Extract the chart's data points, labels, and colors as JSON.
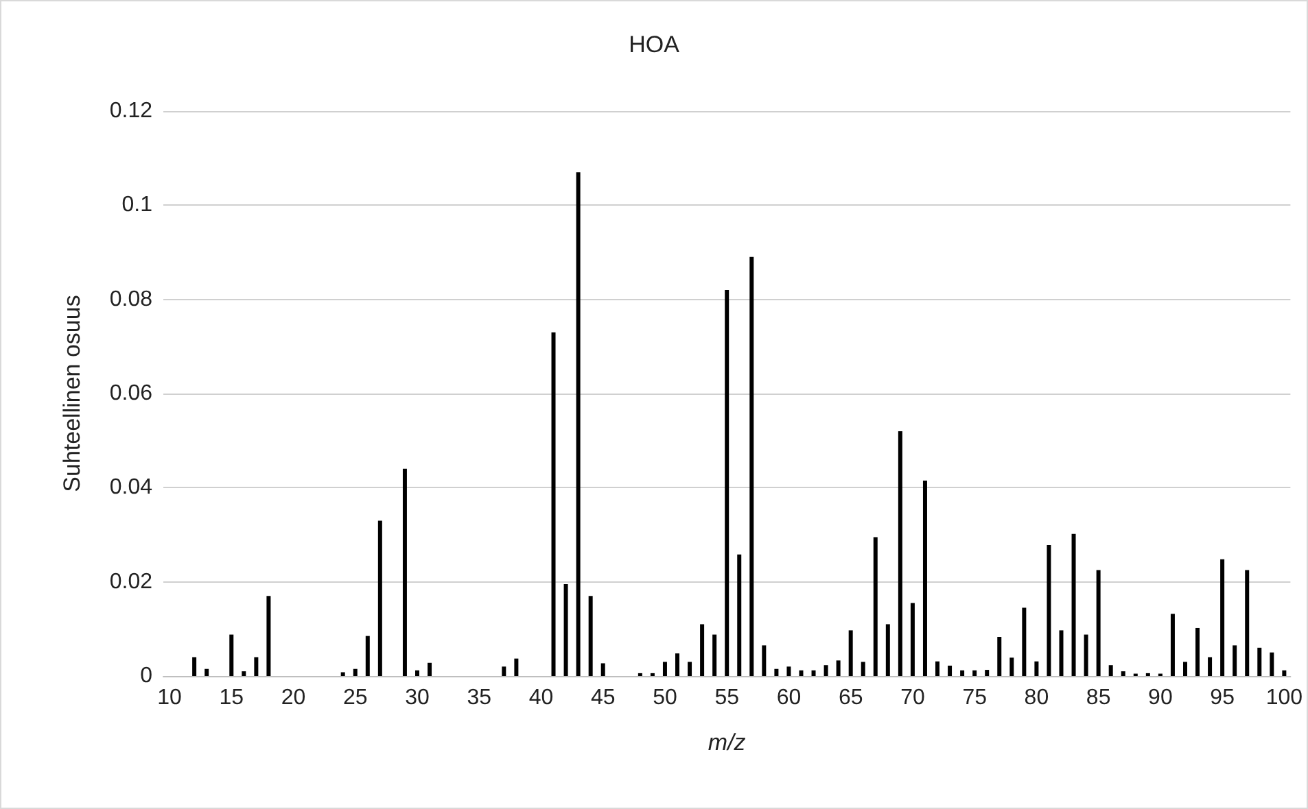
{
  "chart_data": {
    "type": "bar",
    "title": "HOA",
    "xlabel": "m/z",
    "ylabel": "Suhteellinen osuus",
    "categories": [
      "10",
      null,
      null,
      null,
      null,
      "15",
      null,
      null,
      null,
      null,
      "20",
      null,
      null,
      null,
      null,
      "25",
      null,
      null,
      null,
      null,
      "30",
      null,
      null,
      null,
      null,
      "35",
      null,
      null,
      null,
      null,
      "40",
      null,
      null,
      null,
      null,
      "45",
      null,
      null,
      null,
      null,
      "50",
      null,
      null,
      null,
      null,
      "55",
      null,
      null,
      null,
      null,
      "60",
      null,
      null,
      null,
      null,
      "65",
      null,
      null,
      null,
      null,
      "70",
      null,
      null,
      null,
      null,
      "75",
      null,
      null,
      null,
      null,
      "80",
      null,
      null,
      null,
      null,
      "85",
      null,
      null,
      null,
      null,
      "90",
      null,
      null,
      null,
      null,
      "95",
      null,
      null,
      null,
      null,
      "100"
    ],
    "values": [
      null,
      null,
      0.004,
      0.0015,
      null,
      0.0088,
      0.001,
      0.004,
      0.017,
      null,
      null,
      null,
      null,
      null,
      0.0008,
      0.0015,
      0.0085,
      0.033,
      null,
      0.044,
      0.0012,
      0.0028,
      null,
      null,
      null,
      null,
      null,
      0.002,
      0.0037,
      null,
      null,
      0.073,
      0.0195,
      0.107,
      0.017,
      0.0027,
      null,
      null,
      0.0006,
      0.0006,
      0.003,
      0.0048,
      0.003,
      0.011,
      0.0088,
      0.082,
      0.0258,
      0.089,
      0.0065,
      0.0015,
      0.002,
      0.0012,
      0.0012,
      0.0023,
      0.0033,
      0.0097,
      0.003,
      0.0295,
      0.011,
      0.052,
      0.0155,
      0.0415,
      0.0031,
      0.0022,
      0.0012,
      0.0012,
      0.0013,
      0.0083,
      0.0039,
      0.0145,
      0.0031,
      0.0278,
      0.0097,
      0.0302,
      0.0088,
      0.0225,
      0.0023,
      0.001,
      0.0005,
      0.0006,
      0.0005,
      0.0132,
      0.003,
      0.0102,
      0.004,
      0.0248,
      0.0065,
      0.0225,
      0.006,
      0.005,
      0.0012
    ],
    "color": "#000000",
    "ylim": [
      0,
      0.12
    ],
    "yticks": [
      0,
      0.02,
      0.04,
      0.06,
      0.08,
      0.1,
      0.12
    ],
    "grid": "y"
  }
}
